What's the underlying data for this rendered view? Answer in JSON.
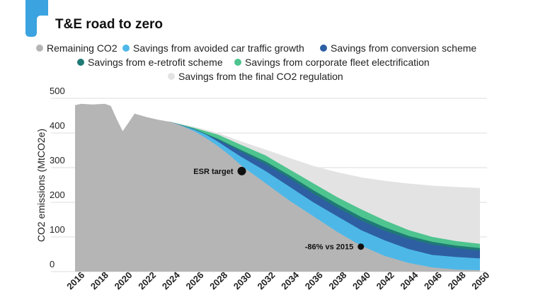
{
  "chart_data": {
    "type": "area",
    "title": "T&E road to zero",
    "ylabel": "CO2 emissions (MtCO2e)",
    "xlabel": "",
    "ylim": [
      0,
      500
    ],
    "yticks": [
      0,
      100,
      200,
      300,
      400,
      500
    ],
    "xticks": [
      2016,
      2018,
      2020,
      2022,
      2024,
      2026,
      2028,
      2030,
      2032,
      2034,
      2036,
      2038,
      2040,
      2042,
      2044,
      2046,
      2048,
      2050
    ],
    "series": [
      {
        "name": "Remaining CO2",
        "color": "#b5b5b5",
        "points": [
          [
            2016,
            480
          ],
          [
            2016.5,
            484
          ],
          [
            2017.5,
            482
          ],
          [
            2018.5,
            484
          ],
          [
            2019,
            478
          ],
          [
            2019.5,
            440
          ],
          [
            2020,
            405
          ],
          [
            2020.5,
            430
          ],
          [
            2021,
            456
          ],
          [
            2022,
            446
          ],
          [
            2023,
            438
          ],
          [
            2024,
            432
          ],
          [
            2025,
            420
          ],
          [
            2026,
            405
          ],
          [
            2027,
            385
          ],
          [
            2028,
            362
          ],
          [
            2029,
            335
          ],
          [
            2030,
            305
          ],
          [
            2032,
            255
          ],
          [
            2034,
            205
          ],
          [
            2036,
            160
          ],
          [
            2038,
            115
          ],
          [
            2040,
            75
          ],
          [
            2042,
            45
          ],
          [
            2044,
            25
          ],
          [
            2046,
            12
          ],
          [
            2048,
            6
          ],
          [
            2050,
            4
          ]
        ]
      },
      {
        "name": "Savings from avoided car traffic growth",
        "color": "#4db8e8",
        "points": [
          [
            2024,
            432
          ],
          [
            2025,
            421
          ],
          [
            2026,
            410
          ],
          [
            2027,
            395
          ],
          [
            2028,
            375
          ],
          [
            2029,
            352
          ],
          [
            2030,
            330
          ],
          [
            2032,
            290
          ],
          [
            2034,
            245
          ],
          [
            2036,
            200
          ],
          [
            2038,
            160
          ],
          [
            2040,
            120
          ],
          [
            2042,
            90
          ],
          [
            2044,
            65
          ],
          [
            2046,
            48
          ],
          [
            2048,
            42
          ],
          [
            2050,
            38
          ]
        ]
      },
      {
        "name": "Savings from conversion scheme",
        "color": "#2e5fa3",
        "points": [
          [
            2024,
            432
          ],
          [
            2026,
            411
          ],
          [
            2028,
            380
          ],
          [
            2030,
            345
          ],
          [
            2032,
            310
          ],
          [
            2034,
            270
          ],
          [
            2036,
            225
          ],
          [
            2038,
            185
          ],
          [
            2040,
            148
          ],
          [
            2042,
            118
          ],
          [
            2044,
            95
          ],
          [
            2046,
            78
          ],
          [
            2048,
            68
          ],
          [
            2050,
            60
          ]
        ]
      },
      {
        "name": "Savings from e-retrofit scheme",
        "color": "#1f7a76",
        "points": [
          [
            2024,
            432
          ],
          [
            2026,
            412
          ],
          [
            2028,
            383
          ],
          [
            2030,
            350
          ],
          [
            2032,
            318
          ],
          [
            2034,
            278
          ],
          [
            2036,
            235
          ],
          [
            2038,
            195
          ],
          [
            2040,
            158
          ],
          [
            2042,
            128
          ],
          [
            2044,
            103
          ],
          [
            2046,
            86
          ],
          [
            2048,
            75
          ],
          [
            2050,
            68
          ]
        ]
      },
      {
        "name": "Savings from corporate fleet electrification",
        "color": "#4ec48f",
        "points": [
          [
            2024,
            432
          ],
          [
            2026,
            415
          ],
          [
            2028,
            395
          ],
          [
            2030,
            365
          ],
          [
            2032,
            335
          ],
          [
            2034,
            295
          ],
          [
            2036,
            255
          ],
          [
            2038,
            215
          ],
          [
            2040,
            180
          ],
          [
            2042,
            148
          ],
          [
            2044,
            120
          ],
          [
            2046,
            100
          ],
          [
            2048,
            88
          ],
          [
            2050,
            80
          ]
        ]
      },
      {
        "name": "Savings from the final CO2 regulation",
        "color": "#e3e3e3",
        "points": [
          [
            2024,
            432
          ],
          [
            2026,
            418
          ],
          [
            2028,
            400
          ],
          [
            2030,
            375
          ],
          [
            2032,
            352
          ],
          [
            2034,
            328
          ],
          [
            2036,
            305
          ],
          [
            2038,
            287
          ],
          [
            2040,
            272
          ],
          [
            2042,
            262
          ],
          [
            2044,
            254
          ],
          [
            2046,
            248
          ],
          [
            2048,
            244
          ],
          [
            2050,
            241
          ]
        ]
      }
    ],
    "annotations": [
      {
        "label": "ESR target",
        "x": 2030,
        "y": 290
      },
      {
        "label": "-86% vs 2015",
        "x": 2040,
        "y": 72
      }
    ],
    "legend_position": "top"
  },
  "colors": {
    "accent_tab": "#3aa3e0",
    "grid": "#dddddd",
    "dot": "#111111"
  },
  "icons": {
    "corner_tab": "brand-corner-tab-icon"
  }
}
